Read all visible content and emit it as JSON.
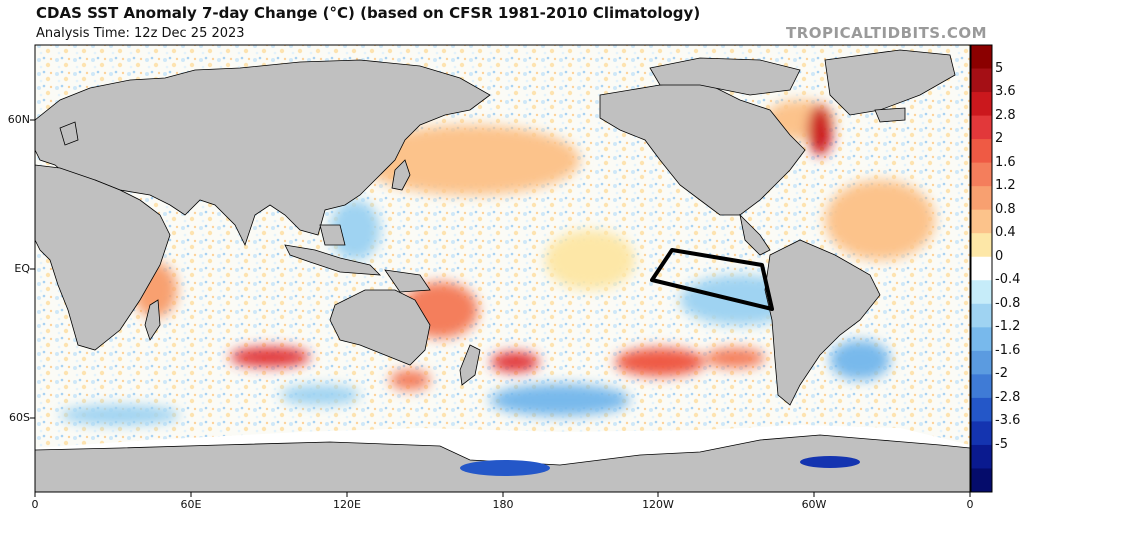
{
  "header": {
    "title": "CDAS SST Anomaly 7-day Change (°C) (based on CFSR 1981-2010 Climatology)",
    "subtitle": "Analysis Time: 12z Dec 25 2023",
    "credit": "TROPICALTIDBITS.COM"
  },
  "axes": {
    "y_ticks": [
      "60N",
      "EQ",
      "60S"
    ],
    "x_ticks": [
      "0",
      "60E",
      "120E",
      "180",
      "120W",
      "60W",
      "0"
    ]
  },
  "colorbar": {
    "labels": [
      "5",
      "3.6",
      "2.8",
      "2",
      "1.6",
      "1.2",
      "0.8",
      "0.4",
      "0",
      "-0.4",
      "-0.8",
      "-1.2",
      "-1.6",
      "-2",
      "-2.8",
      "-3.6",
      "-5"
    ],
    "colors": [
      "#8b0000",
      "#a50f15",
      "#cb181d",
      "#e2383a",
      "#ef5a44",
      "#f47e5c",
      "#f8a070",
      "#fcc38b",
      "#fde7a7",
      "#ffffff",
      "#c6ecf9",
      "#9fd3f2",
      "#78b9ec",
      "#5b9be0",
      "#3f7bd6",
      "#2457c8",
      "#1434b0",
      "#0a1a8f",
      "#050c6b"
    ]
  },
  "colors": {
    "land": "#c0c0c0",
    "antarctic_ice": "#ffffff",
    "outline": "#000000"
  }
}
